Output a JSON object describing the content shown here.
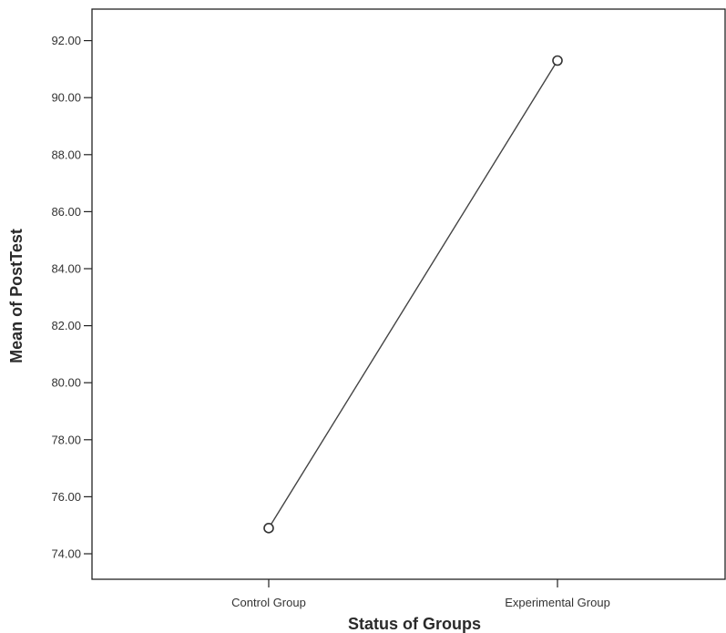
{
  "chart_data": {
    "type": "line",
    "categories": [
      "Control Group",
      "Experimental Group"
    ],
    "series": [
      {
        "values": [
          74.9,
          91.3
        ]
      }
    ],
    "xlabel": "Status of Groups",
    "ylabel": "Mean of PostTest",
    "ylim": [
      73.0,
      93.0
    ],
    "yticks": [
      74.0,
      76.0,
      78.0,
      80.0,
      82.0,
      84.0,
      86.0,
      88.0,
      90.0,
      92.0
    ],
    "ytick_labels": [
      "74.00",
      "76.00",
      "78.00",
      "80.00",
      "82.00",
      "84.00",
      "86.00",
      "88.00",
      "90.00",
      "92.00"
    ],
    "grid": false,
    "marker": "open-circle",
    "line_color": "#444444"
  }
}
